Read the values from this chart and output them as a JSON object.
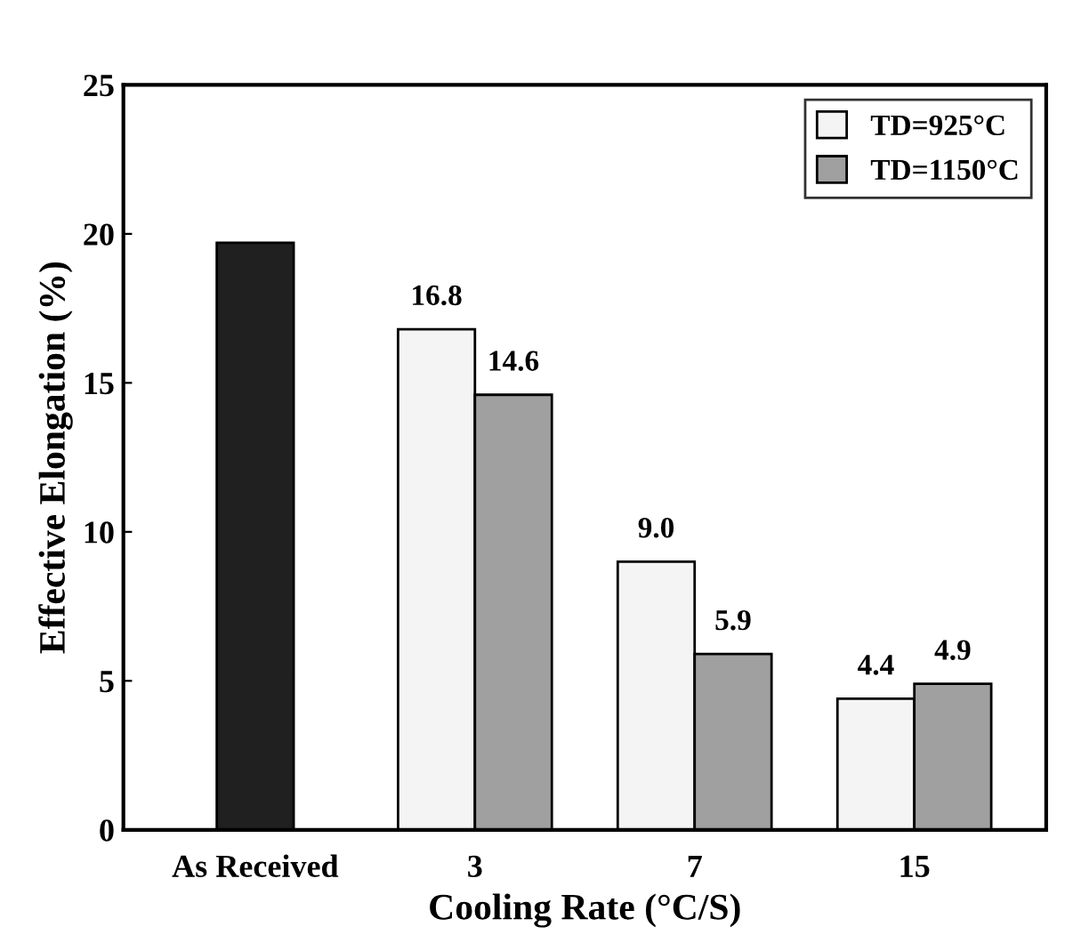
{
  "chart_data": {
    "type": "bar",
    "xlabel": "Cooling Rate (°C/S)",
    "ylabel": "Effective Elongation (%)",
    "categories": [
      "As Received",
      "3",
      "7",
      "15"
    ],
    "series": [
      {
        "color": "#202020",
        "values": [
          19.7,
          null,
          null,
          null
        ]
      },
      {
        "name": "TD=925°C",
        "color": "#f4f4f4",
        "values": [
          null,
          16.8,
          9.0,
          4.4
        ],
        "value_labels": [
          null,
          "16.8",
          "9.0",
          "4.4"
        ]
      },
      {
        "name": "TD=1150°C",
        "color": "#a0a0a0",
        "values": [
          null,
          14.6,
          5.9,
          4.9
        ],
        "value_labels": [
          null,
          "14.6",
          "5.9",
          "4.9"
        ]
      }
    ],
    "ylim": [
      0,
      25
    ],
    "yticks": [
      0,
      5,
      10,
      15,
      20,
      25
    ],
    "legend": "top right"
  }
}
